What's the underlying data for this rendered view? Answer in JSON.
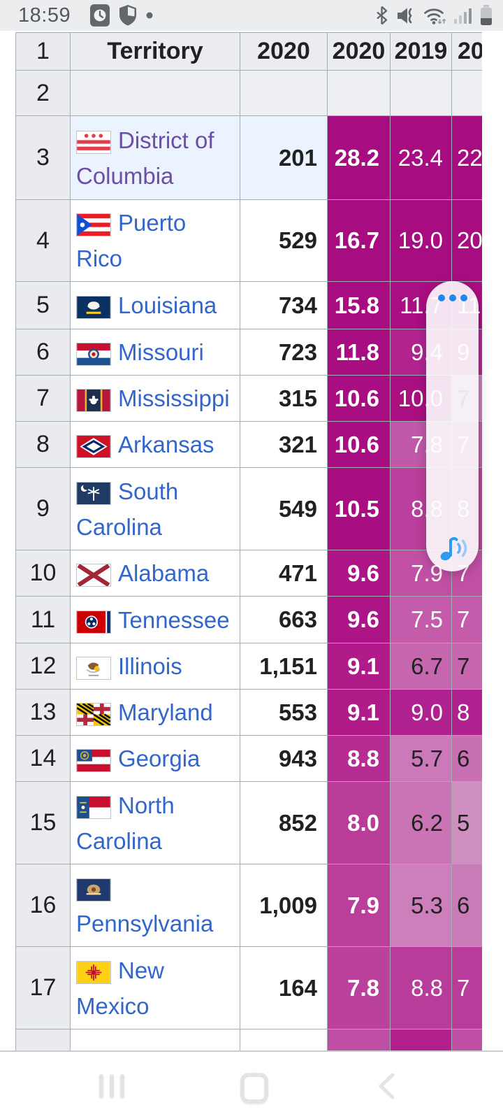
{
  "status_bar": {
    "time": "18:59",
    "left_icons": [
      "clock-app-badge",
      "security-shield",
      "notification-dot"
    ],
    "right_icons": [
      "bluetooth",
      "mute-vibrate",
      "wifi-updown",
      "signal-bars",
      "battery"
    ]
  },
  "table": {
    "header": {
      "num": "1",
      "territory": "Territory",
      "count": "2020",
      "rate": "2020",
      "y2019": "2019",
      "y2018": "20"
    },
    "empty_row": {
      "num": "2"
    },
    "colors": {
      "link_new": "#3366CC",
      "link_visited": "#6D4DA5",
      "row_highlight": "#EAF3FF",
      "header_bg": "#EAECF0",
      "numcol_bg": "#E9EBEF",
      "grid_border": "#A6ACB3",
      "heat_dark": "#A70D80"
    },
    "rows": [
      {
        "num": "3",
        "flag": "dc",
        "territory": "District of Columbia",
        "visited": true,
        "highlight": true,
        "count": "201",
        "rate": "28.2",
        "rate_bg": "#A70D80",
        "y2019": {
          "text": "23.4",
          "bg": "#A70D80",
          "fg": "#FFFFFF"
        },
        "y2018": {
          "text": "22",
          "bg": "#A70D80",
          "fg": "#FFFFFF"
        }
      },
      {
        "num": "4",
        "flag": "pr",
        "territory": "Puerto Rico",
        "visited": false,
        "highlight": false,
        "count": "529",
        "rate": "16.7",
        "rate_bg": "#A70D80",
        "y2019": {
          "text": "19.0",
          "bg": "#A70D80",
          "fg": "#FFFFFF"
        },
        "y2018": {
          "text": "20",
          "bg": "#A70D80",
          "fg": "#FFFFFF"
        }
      },
      {
        "num": "5",
        "flag": "la",
        "territory": "Louisiana",
        "visited": false,
        "highlight": false,
        "count": "734",
        "rate": "15.8",
        "rate_bg": "#A70D80",
        "y2019": {
          "text": "11.7",
          "bg": "#A90E82",
          "fg": "#FFFFFF"
        },
        "y2018": {
          "text": "11",
          "bg": "#A90E82",
          "fg": "#FFFFFF"
        }
      },
      {
        "num": "6",
        "flag": "mo",
        "territory": "Missouri",
        "visited": false,
        "highlight": false,
        "count": "723",
        "rate": "11.8",
        "rate_bg": "#A80D81",
        "y2019": {
          "text": "9.4",
          "bg": "#B22390",
          "fg": "#FFFFFF"
        },
        "y2018": {
          "text": "9",
          "bg": "#B22390",
          "fg": "#FFFFFF"
        }
      },
      {
        "num": "7",
        "flag": "ms",
        "territory": "Mississippi",
        "visited": false,
        "highlight": false,
        "count": "315",
        "rate": "10.6",
        "rate_bg": "#A80D81",
        "y2019": {
          "text": "10.0",
          "bg": "#AA0F82",
          "fg": "#FFFFFF"
        },
        "y2018": {
          "text": "7",
          "bg": "#CB79B8",
          "fg": "#202122"
        }
      },
      {
        "num": "8",
        "flag": "ar",
        "territory": "Arkansas",
        "visited": false,
        "highlight": false,
        "count": "321",
        "rate": "10.6",
        "rate_bg": "#A80D81",
        "y2019": {
          "text": "7.8",
          "bg": "#C158A9",
          "fg": "#FFFFFF"
        },
        "y2018": {
          "text": "7",
          "bg": "#C158A9",
          "fg": "#FFFFFF"
        }
      },
      {
        "num": "9",
        "flag": "sc",
        "territory": "South Carolina",
        "visited": false,
        "highlight": false,
        "count": "549",
        "rate": "10.5",
        "rate_bg": "#A80D81",
        "y2019": {
          "text": "8.8",
          "bg": "#BB3F9C",
          "fg": "#FFFFFF"
        },
        "y2018": {
          "text": "8",
          "bg": "#BB3F9C",
          "fg": "#FFFFFF"
        }
      },
      {
        "num": "10",
        "flag": "al",
        "territory": "Alabama",
        "visited": false,
        "highlight": false,
        "count": "471",
        "rate": "9.6",
        "rate_bg": "#AD1486",
        "y2019": {
          "text": "7.9",
          "bg": "#C150A5",
          "fg": "#FFFFFF"
        },
        "y2018": {
          "text": "7",
          "bg": "#C150A5",
          "fg": "#FFFFFF"
        }
      },
      {
        "num": "11",
        "flag": "tn",
        "territory": "Tennessee",
        "visited": false,
        "highlight": false,
        "count": "663",
        "rate": "9.6",
        "rate_bg": "#AD1486",
        "y2019": {
          "text": "7.5",
          "bg": "#C45CAB",
          "fg": "#FFFFFF"
        },
        "y2018": {
          "text": "7",
          "bg": "#C45CAB",
          "fg": "#FFFFFF"
        }
      },
      {
        "num": "12",
        "flag": "il",
        "territory": "Illinois",
        "visited": false,
        "highlight": false,
        "count": "1,151",
        "rate": "9.1",
        "rate_bg": "#B01A89",
        "y2019": {
          "text": "6.7",
          "bg": "#C566AE",
          "fg": "#202122"
        },
        "y2018": {
          "text": "7",
          "bg": "#C566AE",
          "fg": "#202122"
        }
      },
      {
        "num": "13",
        "flag": "md",
        "territory": "Maryland",
        "visited": false,
        "highlight": false,
        "count": "553",
        "rate": "9.1",
        "rate_bg": "#B01A89",
        "y2019": {
          "text": "9.0",
          "bg": "#B02190",
          "fg": "#FFFFFF"
        },
        "y2018": {
          "text": "8",
          "bg": "#B02190",
          "fg": "#FFFFFF"
        }
      },
      {
        "num": "14",
        "flag": "ga",
        "territory": "Georgia",
        "visited": false,
        "highlight": false,
        "count": "943",
        "rate": "8.8",
        "rate_bg": "#B52C92",
        "y2019": {
          "text": "5.7",
          "bg": "#CB79B8",
          "fg": "#202122"
        },
        "y2018": {
          "text": "6",
          "bg": "#C96FB3",
          "fg": "#202122"
        }
      },
      {
        "num": "15",
        "flag": "nc",
        "territory": "North Carolina",
        "visited": false,
        "highlight": false,
        "count": "852",
        "rate": "8.0",
        "rate_bg": "#B93C99",
        "y2019": {
          "text": "6.2",
          "bg": "#CA74B5",
          "fg": "#202122"
        },
        "y2018": {
          "text": "5",
          "bg": "#D08FC1",
          "fg": "#202122"
        }
      },
      {
        "num": "16",
        "flag": "pa",
        "territory": "Pennsylvania",
        "visited": false,
        "highlight": false,
        "count": "1,009",
        "rate": "7.9",
        "rate_bg": "#BA3F9A",
        "y2019": {
          "text": "5.3",
          "bg": "#CD7FBB",
          "fg": "#202122"
        },
        "y2018": {
          "text": "6",
          "bg": "#C97BB7",
          "fg": "#202122"
        }
      },
      {
        "num": "17",
        "flag": "nm",
        "territory": "New Mexico",
        "visited": false,
        "highlight": false,
        "count": "164",
        "rate": "7.8",
        "rate_bg": "#BB429C",
        "y2019": {
          "text": "8.8",
          "bg": "#B93C9A",
          "fg": "#FFFFFF"
        },
        "y2018": {
          "text": "7",
          "bg": "#B93C9A",
          "fg": "#FFFFFF"
        }
      }
    ],
    "partial_row": {
      "rate_bg": "#BE4FA5",
      "y2019_bg": "#B01F8C",
      "y2018_bg": "#BE4FA5"
    }
  },
  "floating_panel": {
    "more_icon": "three-dots-menu",
    "music_icon": "music-note-playing",
    "accent_color": "#1E88E5"
  },
  "nav_bar": {
    "buttons": [
      "recent-apps",
      "home",
      "back"
    ]
  }
}
